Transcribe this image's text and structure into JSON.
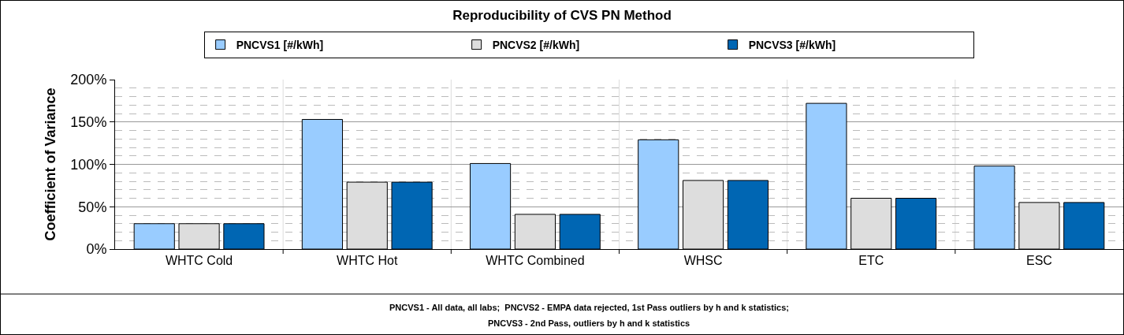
{
  "chart_data": {
    "type": "bar",
    "title": "Reproducibility of CVS PN Method",
    "ylabel": "Coefficient of Variance",
    "categories": [
      "WHTC Cold",
      "WHTC Hot",
      "WHTC Combined",
      "WHSC",
      "ETC",
      "ESC"
    ],
    "series": [
      {
        "name": "PNCVS1 [#/kWh]",
        "color": "#99ccff",
        "values": [
          30,
          153,
          101,
          129,
          172,
          98
        ]
      },
      {
        "name": "PNCVS2 [#/kWh]",
        "color": "#dddddd",
        "values": [
          30,
          79,
          41,
          81,
          60,
          55
        ]
      },
      {
        "name": "PNCVS3 [#/kWh]",
        "color": "#0066b3",
        "values": [
          30,
          79,
          41,
          81,
          60,
          55
        ]
      }
    ],
    "ylim": [
      0,
      200
    ],
    "yticks": [
      {
        "value": 0,
        "label": "0%"
      },
      {
        "value": 50,
        "label": "50%"
      },
      {
        "value": 100,
        "label": "100%"
      },
      {
        "value": 150,
        "label": "150%"
      },
      {
        "value": 200,
        "label": "200%"
      }
    ],
    "grid": true,
    "legend": "top",
    "annotations": [
      "PNCVS1 - All data, all labs;  PNCVS2 - EMPA data rejected, 1st Pass outliers by h and k statistics;",
      "PNCVS3 - 2nd Pass, outliers by h and k statistics"
    ]
  }
}
